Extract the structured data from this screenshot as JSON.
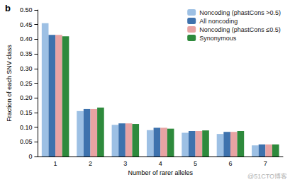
{
  "chart_data": {
    "type": "bar",
    "title": "b",
    "x_label": "Number of rarer alleles",
    "y_label": "Fraction of each SNV class",
    "annotations": [
      "@51CTO博客"
    ],
    "categories": [
      "1",
      "2",
      "3",
      "4",
      "5",
      "6",
      "7"
    ],
    "series": [
      {
        "name": "Noncoding (phastCons >0.5)",
        "color": "#9dc0e4",
        "values": [
          0.455,
          0.155,
          0.108,
          0.09,
          0.081,
          0.077,
          0.038
        ]
      },
      {
        "name": "All noncoding",
        "color": "#3e72ad",
        "values": [
          0.415,
          0.162,
          0.113,
          0.098,
          0.087,
          0.084,
          0.041
        ]
      },
      {
        "name": "Noncoding (phastCons ≤0.5)",
        "color": "#e8a3a3",
        "values": [
          0.415,
          0.162,
          0.113,
          0.098,
          0.087,
          0.084,
          0.041
        ]
      },
      {
        "name": "Synonymous",
        "color": "#2e8a3c",
        "values": [
          0.41,
          0.167,
          0.111,
          0.095,
          0.089,
          0.087,
          0.041
        ]
      }
    ],
    "ylim": [
      0,
      0.5
    ],
    "yticks": [
      0,
      0.05,
      {
        "value": 0.1,
        "label": "0.10"
      },
      0.15,
      {
        "value": 0.2,
        "label": "0.20"
      },
      0.25,
      {
        "value": 0.3,
        "label": "0.30"
      },
      0.35,
      {
        "value": 0.4,
        "label": "0.40"
      },
      0.45,
      {
        "value": 0.5,
        "label": "0.50"
      }
    ],
    "grid": false,
    "legend": "upper right"
  }
}
